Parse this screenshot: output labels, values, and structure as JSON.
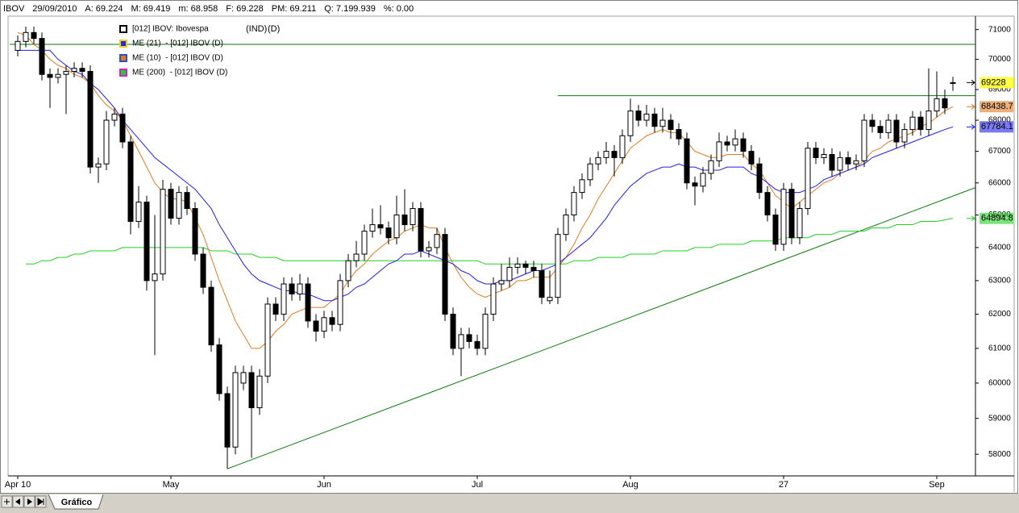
{
  "tabs": [
    "Gráfico"
  ],
  "chart_data": {
    "type": "candlestick",
    "header": [
      "IBOV",
      "29/09/2010",
      "A: 69.224",
      "M: 69.419",
      "m: 68.958",
      "F: 69.228",
      "PM: 69.211",
      "Q: 7.199.939",
      "%: 0.00"
    ],
    "name": "[012] IBOV: Ibovespa",
    "name_tags": [
      "(IND)",
      "(D)"
    ],
    "log_scale": true,
    "grid": false,
    "ylim": [
      57450,
      71400
    ],
    "yticks": [
      58000,
      59000,
      60000,
      61000,
      62000,
      63000,
      64000,
      65000,
      66000,
      67000,
      68000,
      69000,
      70000,
      71000
    ],
    "close_label_color": "#ffff40",
    "categories": [
      "Apr 10",
      null,
      null,
      null,
      null,
      null,
      null,
      null,
      null,
      null,
      null,
      null,
      null,
      null,
      null,
      null,
      null,
      null,
      null,
      "May",
      null,
      null,
      null,
      null,
      null,
      null,
      null,
      null,
      null,
      null,
      null,
      null,
      null,
      null,
      null,
      null,
      null,
      null,
      "Jun",
      null,
      null,
      null,
      null,
      null,
      null,
      null,
      null,
      null,
      null,
      null,
      null,
      null,
      null,
      null,
      null,
      null,
      null,
      "Jul",
      null,
      null,
      null,
      null,
      null,
      null,
      null,
      null,
      null,
      null,
      null,
      null,
      null,
      null,
      null,
      null,
      null,
      null,
      "Aug",
      null,
      null,
      null,
      null,
      null,
      null,
      null,
      null,
      null,
      null,
      null,
      null,
      null,
      null,
      null,
      null,
      null,
      null,
      "27",
      null,
      null,
      null,
      null,
      null,
      null,
      null,
      null,
      null,
      null,
      null,
      null,
      null,
      null,
      null,
      null,
      null,
      null,
      "Sep",
      null,
      null
    ],
    "open": [
      70300,
      70600,
      70900,
      70700,
      69500,
      69400,
      69500,
      69600,
      69700,
      69600,
      66500,
      66600,
      68000,
      68200,
      67300,
      64800,
      65400,
      63000,
      63200,
      65800,
      64900,
      65700,
      65200,
      63800,
      62800,
      61100,
      59700,
      58200,
      60000,
      60300,
      59300,
      60200,
      62300,
      62000,
      62900,
      62600,
      62900,
      61800,
      61500,
      61900,
      61700,
      63000,
      63600,
      63800,
      64500,
      64700,
      64600,
      64300,
      65000,
      64700,
      65200,
      63900,
      64000,
      64400,
      62000,
      61000,
      61400,
      61200,
      61000,
      62000,
      62900,
      63000,
      63400,
      63500,
      63400,
      63300,
      62400,
      62500,
      64400,
      65000,
      65700,
      66100,
      66600,
      66800,
      67000,
      66800,
      67500,
      68300,
      68000,
      68200,
      67800,
      68000,
      67700,
      67400,
      66000,
      65900,
      66300,
      66700,
      67300,
      67200,
      67400,
      67000,
      66600,
      65700,
      65000,
      64100,
      65800,
      64300,
      65200,
      67100,
      66800,
      66900,
      66400,
      66800,
      66600,
      66700,
      68000,
      67800,
      67600,
      68000,
      67300,
      67700,
      68100,
      67700,
      68300,
      68700,
      69224
    ],
    "high": [
      70800,
      71100,
      71100,
      70900,
      69700,
      69700,
      69800,
      69900,
      69900,
      69800,
      66800,
      68300,
      68400,
      68400,
      67500,
      65900,
      65600,
      65000,
      66100,
      66000,
      65900,
      65900,
      65400,
      64000,
      63000,
      61300,
      59900,
      60500,
      60500,
      60500,
      60400,
      62500,
      62500,
      63100,
      63100,
      63200,
      63100,
      62000,
      62100,
      62100,
      63200,
      63800,
      64200,
      64700,
      65200,
      65300,
      64800,
      65600,
      65800,
      65400,
      65400,
      64200,
      64600,
      64600,
      62200,
      61600,
      61600,
      61400,
      62200,
      63100,
      63500,
      63700,
      63700,
      63600,
      63600,
      63500,
      63300,
      64600,
      65200,
      65900,
      66300,
      66800,
      67000,
      67300,
      67200,
      67700,
      68700,
      68500,
      68500,
      68400,
      68400,
      68200,
      67900,
      67600,
      66200,
      66500,
      66900,
      67600,
      67500,
      67700,
      67600,
      67200,
      66800,
      65900,
      65200,
      66000,
      66000,
      65400,
      67300,
      67300,
      67100,
      67100,
      67000,
      67000,
      66900,
      68200,
      68200,
      68000,
      68200,
      68200,
      67900,
      68300,
      68300,
      69700,
      69600,
      69000,
      69419
    ],
    "low": [
      70100,
      70400,
      70500,
      69300,
      68400,
      69200,
      68200,
      69400,
      69400,
      66300,
      66000,
      66400,
      67800,
      67100,
      64400,
      64600,
      62700,
      60800,
      63000,
      64700,
      64700,
      65000,
      63600,
      62600,
      60900,
      59500,
      57600,
      58000,
      59800,
      57900,
      59100,
      60000,
      61800,
      61800,
      62400,
      62400,
      61600,
      61200,
      61300,
      61500,
      61500,
      62800,
      63400,
      63600,
      64300,
      64400,
      64100,
      64100,
      64500,
      64500,
      63700,
      63700,
      63800,
      61800,
      60800,
      60200,
      61000,
      60800,
      60800,
      61800,
      62700,
      62800,
      63200,
      63200,
      63100,
      62300,
      62300,
      62300,
      64200,
      64800,
      65500,
      65900,
      66400,
      66600,
      66200,
      66600,
      67300,
      67800,
      67800,
      67600,
      67600,
      67400,
      67200,
      65800,
      65300,
      65700,
      66100,
      66500,
      67000,
      67000,
      66800,
      66400,
      65500,
      64800,
      63900,
      63900,
      64100,
      64100,
      65000,
      66600,
      66600,
      66200,
      66200,
      66400,
      66400,
      66500,
      67600,
      67400,
      67400,
      67100,
      67100,
      67500,
      67500,
      67500,
      68100,
      68200,
      68958
    ],
    "close": [
      70600,
      70900,
      70700,
      69500,
      69400,
      69500,
      69600,
      69700,
      69600,
      66500,
      66600,
      68000,
      68200,
      67300,
      64800,
      65400,
      63000,
      63200,
      65800,
      64900,
      65700,
      65200,
      63800,
      62800,
      61100,
      59700,
      58200,
      60300,
      60300,
      59300,
      60200,
      62300,
      62000,
      62900,
      62600,
      62900,
      61800,
      61500,
      61900,
      61700,
      63000,
      63600,
      63800,
      64500,
      64700,
      64600,
      64300,
      65000,
      64700,
      65200,
      63900,
      64000,
      64400,
      62000,
      61000,
      61400,
      61200,
      61000,
      62000,
      62900,
      63000,
      63400,
      63500,
      63400,
      63300,
      62500,
      62500,
      64400,
      65000,
      65700,
      66100,
      66600,
      66800,
      67000,
      66800,
      67500,
      68300,
      68000,
      68200,
      67800,
      68000,
      67700,
      67400,
      66000,
      65900,
      66300,
      66700,
      67300,
      67200,
      67400,
      67000,
      66600,
      65700,
      65000,
      64100,
      65800,
      64300,
      65200,
      67100,
      66800,
      66900,
      66400,
      66800,
      66600,
      66700,
      68000,
      67800,
      67600,
      68000,
      67300,
      67700,
      68100,
      67700,
      68300,
      68700,
      68400,
      69228
    ],
    "series": [
      {
        "name": "ME (21)  - [012] IBOV (D)",
        "color": "#1f1fe8",
        "icon_fill": "#2a2ad8",
        "icon_border": "#e8d020",
        "values": [
          70300,
          70300,
          70300,
          70300,
          70300,
          70000,
          69800,
          69600,
          69500,
          69200,
          69000,
          68700,
          68400,
          68000,
          67700,
          67400,
          67100,
          66800,
          66600,
          66400,
          66200,
          66000,
          65800,
          65500,
          65200,
          64700,
          64300,
          63900,
          63500,
          63200,
          63000,
          62900,
          62800,
          62700,
          62700,
          62600,
          62600,
          62500,
          62400,
          62400,
          62500,
          62600,
          62800,
          62900,
          63100,
          63300,
          63500,
          63600,
          63800,
          63800,
          63900,
          63800,
          63700,
          63600,
          63500,
          63300,
          63200,
          63000,
          62900,
          62900,
          63000,
          63000,
          63100,
          63200,
          63300,
          63300,
          63400,
          63500,
          63700,
          63900,
          64100,
          64300,
          64600,
          64900,
          65300,
          65600,
          65900,
          66100,
          66300,
          66400,
          66500,
          66500,
          66600,
          66500,
          66500,
          66400,
          66400,
          66400,
          66500,
          66500,
          66500,
          66300,
          66200,
          66000,
          65800,
          65700,
          65700,
          65700,
          65800,
          65900,
          66100,
          66200,
          66300,
          66400,
          66500,
          66600,
          66800,
          66900,
          67000,
          67100,
          67200,
          67300,
          67400,
          67500,
          67600,
          67700,
          67784.1
        ]
      },
      {
        "name": "ME (10)  - [012] IBOV (D)",
        "color": "#e07a20",
        "icon_fill": "#e07a20",
        "icon_border": "#3050c0",
        "values": [
          70900,
          70800,
          70500,
          70300,
          70000,
          69800,
          69700,
          69500,
          69400,
          69200,
          68800,
          68500,
          68300,
          68000,
          67500,
          67000,
          66500,
          66000,
          65700,
          65500,
          65500,
          65400,
          64900,
          64400,
          63700,
          63000,
          62400,
          61800,
          61400,
          61000,
          61000,
          61200,
          61500,
          61700,
          62000,
          62100,
          62200,
          62200,
          62200,
          62400,
          62600,
          63000,
          63300,
          63500,
          63800,
          64000,
          64200,
          64300,
          64500,
          64600,
          64700,
          64600,
          64600,
          64000,
          63500,
          63100,
          62800,
          62600,
          62500,
          62600,
          62700,
          62800,
          63000,
          63000,
          63100,
          63100,
          63100,
          63400,
          63700,
          64100,
          64600,
          65000,
          65500,
          65900,
          66300,
          66700,
          67100,
          67300,
          67500,
          67600,
          67700,
          67600,
          67600,
          67300,
          67000,
          66900,
          66800,
          66800,
          66900,
          66900,
          66900,
          66600,
          66400,
          66000,
          65600,
          65400,
          65200,
          65400,
          65600,
          65800,
          66000,
          66100,
          66300,
          66400,
          66500,
          66700,
          67000,
          67100,
          67300,
          67400,
          67500,
          67600,
          67800,
          67900,
          68100,
          68300,
          68438.7
        ]
      },
      {
        "name": "ME (200)  - [012] IBOV (D)",
        "color": "#22d022",
        "icon_fill": "#22d022",
        "icon_border": "#d020d0",
        "values": [
          null,
          63500,
          63500,
          63600,
          63600,
          63700,
          63700,
          63800,
          63800,
          63900,
          63900,
          63900,
          63900,
          64000,
          64000,
          64000,
          64000,
          64000,
          64000,
          64000,
          64000,
          64000,
          64000,
          64000,
          63900,
          63900,
          63900,
          63800,
          63800,
          63800,
          63700,
          63700,
          63700,
          63600,
          63600,
          63600,
          63600,
          63600,
          63600,
          63600,
          63600,
          63600,
          63600,
          63600,
          63600,
          63600,
          63600,
          63600,
          63600,
          63600,
          63600,
          63600,
          63600,
          63600,
          63600,
          63600,
          63600,
          63600,
          63500,
          63500,
          63500,
          63500,
          63500,
          63500,
          63500,
          63500,
          63500,
          63500,
          63500,
          63600,
          63600,
          63600,
          63700,
          63700,
          63700,
          63700,
          63800,
          63800,
          63800,
          63800,
          63900,
          63900,
          63900,
          63900,
          64000,
          64000,
          64000,
          64100,
          64100,
          64100,
          64100,
          64200,
          64200,
          64200,
          64200,
          64300,
          64300,
          64300,
          64300,
          64400,
          64400,
          64400,
          64500,
          64500,
          64500,
          64500,
          64600,
          64600,
          64600,
          64700,
          64700,
          64700,
          64800,
          64800,
          64800,
          64850,
          64894.8
        ]
      }
    ],
    "line_color": "#0a7a0a",
    "hlines": [
      {
        "value": 70500,
        "x": [
          -1,
          119.5
        ]
      },
      {
        "value": 68800,
        "x": [
          67,
          119.5
        ]
      }
    ],
    "trendline": {
      "x": [
        26,
        119.3
      ],
      "y": [
        57600,
        65900
      ]
    }
  }
}
